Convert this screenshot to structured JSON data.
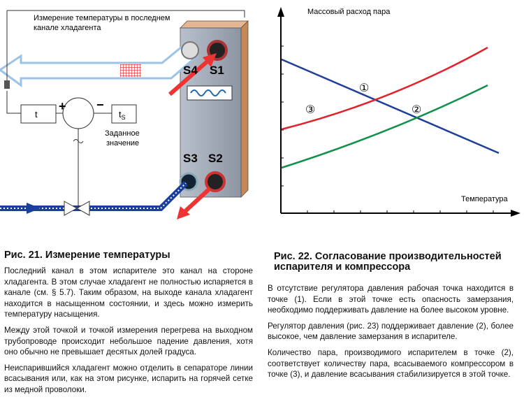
{
  "figure_21": {
    "annotation": [
      "Измерение температуры в последнем",
      "канале хладагента"
    ],
    "t": "t",
    "plus": "+",
    "minus": "−",
    "ts": "t",
    "ts_sub": "S",
    "setpoint": [
      "Заданное",
      "значение"
    ],
    "ports": [
      "S4",
      "S1",
      "S3",
      "S2"
    ],
    "caption": "Рис. 21. Измерение температуры",
    "paragraphs": [
      "Последний канал в этом испарителе это канал на стороне хладагента. В этом случае хладагент не полностью испаряется в канале (см. § 5.7). Таким образом, на выходе канала хладагент находится в насыщенном состоянии, и здесь можно измерить температуру насыщения.",
      "Между этой точкой и точкой измерения перегрева на выходном трубопроводе происходит небольшое падение давления, хотя оно обычно не превышает десятых долей градуса.",
      "Неиспарившийся хладагент можно отделить в сепараторе линии всасывания или, как на этом рисунке, испарить на горячей сетке из медной проволоки."
    ]
  },
  "figure_22": {
    "y_label": "Массовый расход пара",
    "x_label": "Температура",
    "points": [
      "①",
      "②",
      "③"
    ],
    "caption": [
      "Рис. 22. Согласование производительностей",
      "испарителя и компрессора"
    ],
    "paragraphs": [
      "В отсутствие регулятора давления рабочая точка находится в точке (1). Если в этой точке есть опасность замерзания, необходимо поддерживать давление на более высоком уровне.",
      "Регулятор давления (рис. 23) поддерживает давление (2), более высокое, чем давление замерзания в испарителе.",
      "Количество пара, производимого испарителем в точке (2), соответствует количеству пара, всасываемого компрессором в точке (3), и давление всасывания стабилизируется в этой точке."
    ]
  }
}
